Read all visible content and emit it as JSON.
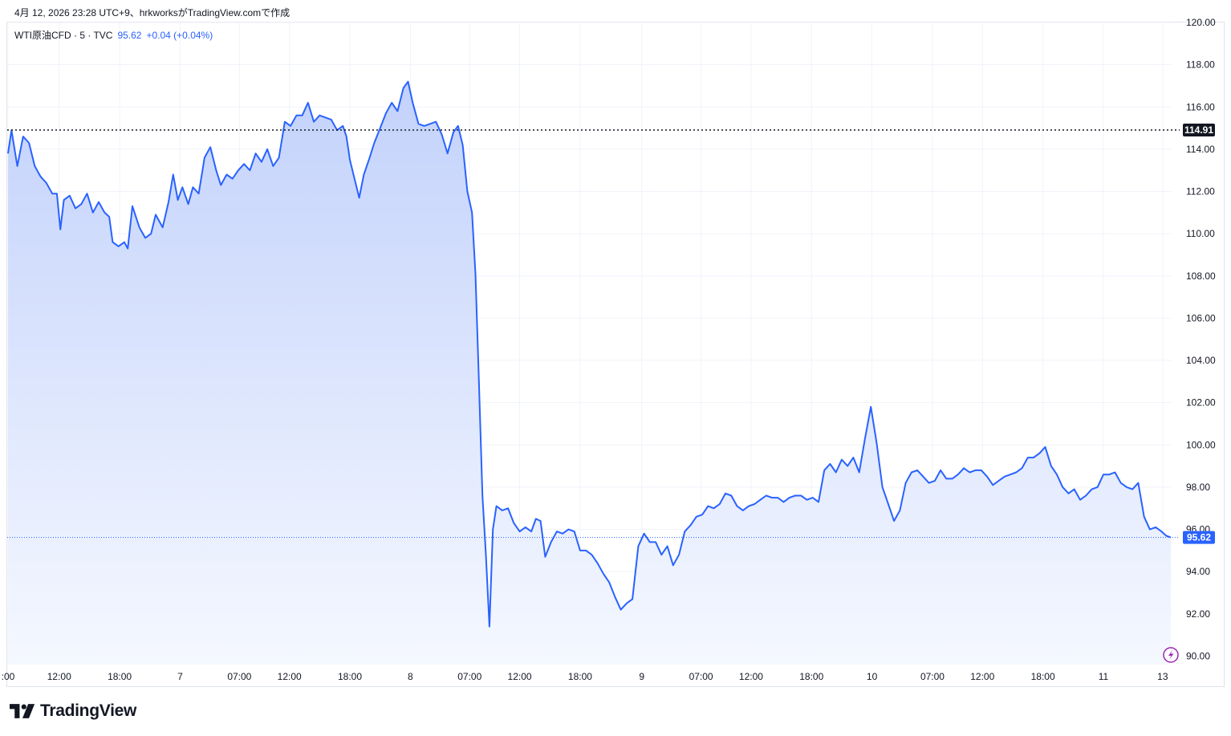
{
  "caption": "4月 12, 2026 23:28 UTC+9、hrkworksがTradingView.comで作成",
  "legend": {
    "symbol": "WTI原油CFD · 5 · TVC",
    "price": "95.62",
    "change": "+0.04 (+0.04%)"
  },
  "brand": "TradingView",
  "colors": {
    "line": "#2962ff",
    "area_top": "#c3d2fb",
    "area_bottom": "#f5f8ff",
    "prev_close": "#131722",
    "grid": "#f0f3fa",
    "quick_action": "#9c27b0"
  },
  "icons": [
    "tradingview-logo-icon",
    "lightning-icon"
  ],
  "chart_data": {
    "type": "area",
    "title": "",
    "xlabel": "",
    "ylabel": "",
    "ylim": [
      89.6,
      120.0
    ],
    "y_ticks": [
      "90.00",
      "92.00",
      "94.00",
      "96.00",
      "98.00",
      "100.00",
      "102.00",
      "104.00",
      "106.00",
      "108.00",
      "110.00",
      "112.00",
      "114.00",
      "116.00",
      "118.00",
      "120.00"
    ],
    "x_ticks": [
      ":00",
      "12:00",
      "18:00",
      "7",
      "07:00",
      "12:00",
      "18:00",
      "8",
      "07:00",
      "12:00",
      "18:00",
      "9",
      "07:00",
      "12:00",
      "18:00",
      "10",
      "07:00",
      "12:00",
      "18:00",
      "11",
      "13"
    ],
    "x_range": [
      0,
      100
    ],
    "x_tick_positions": [
      0,
      4.4,
      9.6,
      14.8,
      19.9,
      24.2,
      29.4,
      34.6,
      39.7,
      44.0,
      49.2,
      54.5,
      59.6,
      63.9,
      69.1,
      74.3,
      79.5,
      83.8,
      89.0,
      94.2,
      99.3
    ],
    "previous_close": {
      "value": 114.91,
      "label": "114.91"
    },
    "last_price": {
      "value": 95.62,
      "label": "95.62"
    },
    "series": [
      {
        "values": [
          [
            0.0,
            113.8
          ],
          [
            0.3,
            114.9
          ],
          [
            0.8,
            113.2
          ],
          [
            1.3,
            114.6
          ],
          [
            1.8,
            114.3
          ],
          [
            2.3,
            113.2
          ],
          [
            2.8,
            112.7
          ],
          [
            3.3,
            112.4
          ],
          [
            3.8,
            111.9
          ],
          [
            4.2,
            111.9
          ],
          [
            4.5,
            110.2
          ],
          [
            4.8,
            111.6
          ],
          [
            5.3,
            111.8
          ],
          [
            5.8,
            111.2
          ],
          [
            6.3,
            111.4
          ],
          [
            6.8,
            111.9
          ],
          [
            7.3,
            111.0
          ],
          [
            7.8,
            111.5
          ],
          [
            8.3,
            111.0
          ],
          [
            8.7,
            110.8
          ],
          [
            9.0,
            109.6
          ],
          [
            9.5,
            109.4
          ],
          [
            10.0,
            109.6
          ],
          [
            10.3,
            109.3
          ],
          [
            10.7,
            111.3
          ],
          [
            11.3,
            110.3
          ],
          [
            11.8,
            109.8
          ],
          [
            12.3,
            110.0
          ],
          [
            12.7,
            110.9
          ],
          [
            13.3,
            110.3
          ],
          [
            13.8,
            111.5
          ],
          [
            14.2,
            112.8
          ],
          [
            14.6,
            111.6
          ],
          [
            15.0,
            112.2
          ],
          [
            15.5,
            111.4
          ],
          [
            15.9,
            112.2
          ],
          [
            16.4,
            111.9
          ],
          [
            16.9,
            113.6
          ],
          [
            17.4,
            114.1
          ],
          [
            17.9,
            113.0
          ],
          [
            18.3,
            112.3
          ],
          [
            18.8,
            112.8
          ],
          [
            19.3,
            112.6
          ],
          [
            19.8,
            113.0
          ],
          [
            20.3,
            113.3
          ],
          [
            20.8,
            113.0
          ],
          [
            21.3,
            113.8
          ],
          [
            21.8,
            113.4
          ],
          [
            22.3,
            114.0
          ],
          [
            22.8,
            113.2
          ],
          [
            23.3,
            113.6
          ],
          [
            23.8,
            115.3
          ],
          [
            24.3,
            115.1
          ],
          [
            24.8,
            115.6
          ],
          [
            25.3,
            115.6
          ],
          [
            25.8,
            116.2
          ],
          [
            26.3,
            115.3
          ],
          [
            26.8,
            115.6
          ],
          [
            27.3,
            115.5
          ],
          [
            27.8,
            115.4
          ],
          [
            28.3,
            114.9
          ],
          [
            28.8,
            115.1
          ],
          [
            29.1,
            114.6
          ],
          [
            29.4,
            113.5
          ],
          [
            29.8,
            112.6
          ],
          [
            30.2,
            111.7
          ],
          [
            30.6,
            112.8
          ],
          [
            31.1,
            113.6
          ],
          [
            31.5,
            114.3
          ],
          [
            32.0,
            115.0
          ],
          [
            32.5,
            115.7
          ],
          [
            33.0,
            116.2
          ],
          [
            33.5,
            115.8
          ],
          [
            34.0,
            116.9
          ],
          [
            34.4,
            117.2
          ],
          [
            34.8,
            116.2
          ],
          [
            35.3,
            115.2
          ],
          [
            35.8,
            115.1
          ],
          [
            36.3,
            115.2
          ],
          [
            36.8,
            115.3
          ],
          [
            37.3,
            114.7
          ],
          [
            37.8,
            113.8
          ],
          [
            38.3,
            114.8
          ],
          [
            38.7,
            115.1
          ],
          [
            39.1,
            114.2
          ],
          [
            39.5,
            112.0
          ],
          [
            39.9,
            111.0
          ],
          [
            40.2,
            108.1
          ],
          [
            40.5,
            103.0
          ],
          [
            40.8,
            97.6
          ],
          [
            41.1,
            94.8
          ],
          [
            41.4,
            91.4
          ],
          [
            41.7,
            96.0
          ],
          [
            42.0,
            97.1
          ],
          [
            42.5,
            96.9
          ],
          [
            43.0,
            97.0
          ],
          [
            43.5,
            96.3
          ],
          [
            44.0,
            95.9
          ],
          [
            44.5,
            96.1
          ],
          [
            45.0,
            95.9
          ],
          [
            45.4,
            96.5
          ],
          [
            45.8,
            96.4
          ],
          [
            46.2,
            94.7
          ],
          [
            46.7,
            95.4
          ],
          [
            47.2,
            95.9
          ],
          [
            47.7,
            95.8
          ],
          [
            48.2,
            96.0
          ],
          [
            48.7,
            95.9
          ],
          [
            49.2,
            95.0
          ],
          [
            49.7,
            95.0
          ],
          [
            50.2,
            94.8
          ],
          [
            50.7,
            94.4
          ],
          [
            51.2,
            93.9
          ],
          [
            51.7,
            93.5
          ],
          [
            52.2,
            92.8
          ],
          [
            52.7,
            92.2
          ],
          [
            53.2,
            92.5
          ],
          [
            53.7,
            92.7
          ],
          [
            54.2,
            95.2
          ],
          [
            54.7,
            95.8
          ],
          [
            55.2,
            95.4
          ],
          [
            55.7,
            95.4
          ],
          [
            56.2,
            94.8
          ],
          [
            56.7,
            95.2
          ],
          [
            57.2,
            94.3
          ],
          [
            57.7,
            94.8
          ],
          [
            58.2,
            95.9
          ],
          [
            58.7,
            96.2
          ],
          [
            59.2,
            96.6
          ],
          [
            59.7,
            96.7
          ],
          [
            60.2,
            97.1
          ],
          [
            60.7,
            97.0
          ],
          [
            61.2,
            97.2
          ],
          [
            61.7,
            97.7
          ],
          [
            62.2,
            97.6
          ],
          [
            62.7,
            97.1
          ],
          [
            63.2,
            96.9
          ],
          [
            63.7,
            97.1
          ],
          [
            64.2,
            97.2
          ],
          [
            64.7,
            97.4
          ],
          [
            65.2,
            97.6
          ],
          [
            65.7,
            97.5
          ],
          [
            66.2,
            97.5
          ],
          [
            66.7,
            97.3
          ],
          [
            67.2,
            97.5
          ],
          [
            67.7,
            97.6
          ],
          [
            68.2,
            97.6
          ],
          [
            68.7,
            97.4
          ],
          [
            69.2,
            97.5
          ],
          [
            69.7,
            97.3
          ],
          [
            70.2,
            98.8
          ],
          [
            70.7,
            99.1
          ],
          [
            71.2,
            98.7
          ],
          [
            71.7,
            99.3
          ],
          [
            72.2,
            99.0
          ],
          [
            72.7,
            99.4
          ],
          [
            73.2,
            98.7
          ],
          [
            73.7,
            100.3
          ],
          [
            74.2,
            101.8
          ],
          [
            74.7,
            100.1
          ],
          [
            75.2,
            98.0
          ],
          [
            75.7,
            97.2
          ],
          [
            76.2,
            96.4
          ],
          [
            76.7,
            96.9
          ],
          [
            77.2,
            98.2
          ],
          [
            77.7,
            98.7
          ],
          [
            78.2,
            98.8
          ],
          [
            78.7,
            98.5
          ],
          [
            79.2,
            98.2
          ],
          [
            79.7,
            98.3
          ],
          [
            80.2,
            98.8
          ],
          [
            80.7,
            98.4
          ],
          [
            81.2,
            98.4
          ],
          [
            81.7,
            98.6
          ],
          [
            82.2,
            98.9
          ],
          [
            82.7,
            98.7
          ],
          [
            83.2,
            98.8
          ],
          [
            83.7,
            98.8
          ],
          [
            84.2,
            98.5
          ],
          [
            84.7,
            98.1
          ],
          [
            85.2,
            98.3
          ],
          [
            85.7,
            98.5
          ],
          [
            86.2,
            98.6
          ],
          [
            86.7,
            98.7
          ],
          [
            87.2,
            98.9
          ],
          [
            87.7,
            99.4
          ],
          [
            88.2,
            99.4
          ],
          [
            88.7,
            99.6
          ],
          [
            89.2,
            99.9
          ],
          [
            89.7,
            99.0
          ],
          [
            90.2,
            98.6
          ],
          [
            90.7,
            98.0
          ],
          [
            91.2,
            97.7
          ],
          [
            91.7,
            97.9
          ],
          [
            92.2,
            97.4
          ],
          [
            92.7,
            97.6
          ],
          [
            93.2,
            97.9
          ],
          [
            93.7,
            98.0
          ],
          [
            94.2,
            98.6
          ],
          [
            94.7,
            98.6
          ],
          [
            95.2,
            98.7
          ],
          [
            95.7,
            98.2
          ],
          [
            96.2,
            98.0
          ],
          [
            96.7,
            97.9
          ],
          [
            97.2,
            98.2
          ],
          [
            97.7,
            96.6
          ],
          [
            98.2,
            96.0
          ],
          [
            98.7,
            96.1
          ],
          [
            99.2,
            95.9
          ],
          [
            99.6,
            95.7
          ],
          [
            100.0,
            95.62
          ]
        ]
      }
    ]
  }
}
